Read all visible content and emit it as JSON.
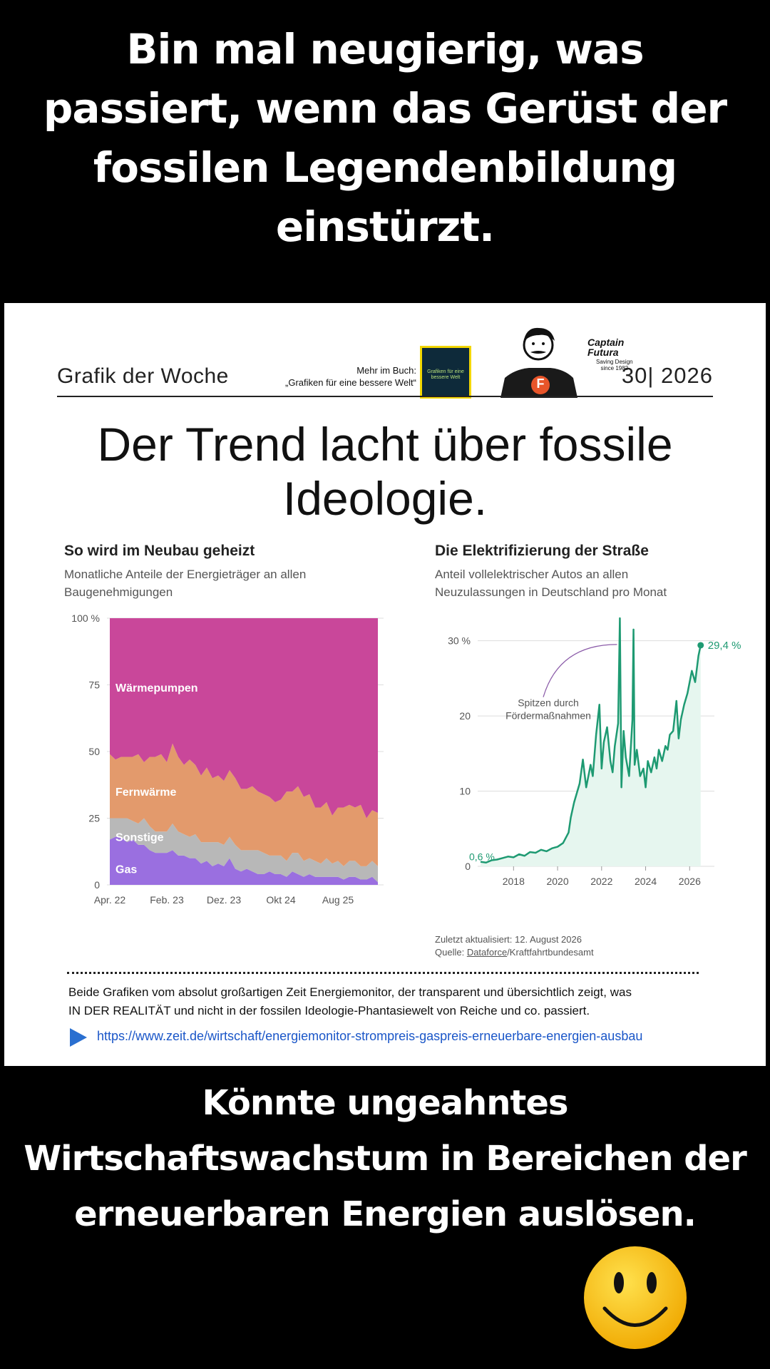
{
  "top_caption": [
    "Bin mal neugierig, was",
    "passiert, wenn das Gerüst der",
    "fossilen Legendenbildung",
    "einstürzt."
  ],
  "bottom_caption": [
    "Könnte ungeahntes",
    "Wirtschaftswachstum in Bereichen der",
    "erneuerbaren Energien auslösen."
  ],
  "header": {
    "left": "Grafik der Woche",
    "book_note_1": "Mehr im Buch:",
    "book_note_2": "„Grafiken für eine bessere Welt“",
    "book_cover_text": "Grafiken für eine bessere Welt",
    "logo_name_1": "Captain",
    "logo_name_2": "Futura",
    "logo_sub_1": "Saving Design",
    "logo_sub_2": "since 1982",
    "logo_badge": "F",
    "issue": "30| 2026"
  },
  "headline": [
    "Der Trend lacht über fossile",
    "Ideologie."
  ],
  "chart_left_text": {
    "title": "So wird im Neubau geheizt",
    "subtitle_1": "Monatliche Anteile der Energieträger an allen",
    "subtitle_2": "Baugenehmigungen",
    "y_ticks": [
      "100 %",
      "75",
      "50",
      "25",
      "0"
    ],
    "x_ticks": [
      "Apr. 22",
      "Feb. 23",
      "Dez. 23",
      "Okt 24",
      "Aug 25"
    ],
    "labels": [
      "Wärmepumpen",
      "Fernwärme",
      "Sonstige",
      "Gas"
    ]
  },
  "chart_right_text": {
    "title": "Die Elektrifizierung der Straße",
    "subtitle_1": "Anteil vollelektrischer Autos an allen",
    "subtitle_2": "Neuzulassungen in Deutschland pro Monat",
    "y_ticks": [
      "30 %",
      "20",
      "10",
      "0"
    ],
    "x_ticks": [
      "2018",
      "2020",
      "2022",
      "2024",
      "2026"
    ],
    "annotation_1": "Spitzen durch",
    "annotation_2": "Fördermaßnahmen",
    "start_label": "0,6 %",
    "end_label": "29,4 %",
    "updated": "Zuletzt aktualisiert: 12. August 2026",
    "source_prefix": "Quelle: ",
    "source_link": "Dataforce",
    "source_suffix": "/Kraftfahrtbundesamt"
  },
  "note": {
    "line_1": "Beide Grafiken vom absolut großartigen Zeit Energiemonitor, der transparent und übersichtlich zeigt, was",
    "line_2": "IN DER REALITÄT und nicht in der fossilen Ideologie-Phantasiewelt von Reiche und co. passiert.",
    "url": "https://www.zeit.de/wirtschaft/energiemonitor-strompreis-gaspreis-erneuerbare-energien-ausbau"
  },
  "colors": {
    "waermepumpen": "#c9479a",
    "fernwaerme": "#e39a6c",
    "sonstige": "#b8b8b8",
    "gas": "#9a6fe0",
    "ev_line": "#1e9a72",
    "ev_fill": "#e6f6ef",
    "link": "#1a56c8"
  },
  "chart_data": [
    {
      "type": "area",
      "title": "So wird im Neubau geheizt",
      "ylabel": "",
      "ylim": [
        0,
        100
      ],
      "x": [
        "Apr. 22",
        "Mai 22",
        "Jun. 22",
        "Jul. 22",
        "Aug. 22",
        "Sep. 22",
        "Okt. 22",
        "Nov. 22",
        "Dez. 22",
        "Jan. 23",
        "Feb. 23",
        "Mär. 23",
        "Apr. 23",
        "Mai 23",
        "Jun. 23",
        "Jul. 23",
        "Aug. 23",
        "Sep. 23",
        "Okt. 23",
        "Nov. 23",
        "Dez. 23",
        "Jan. 24",
        "Feb. 24",
        "Mär. 24",
        "Apr. 24",
        "Mai 24",
        "Jun. 24",
        "Jul. 24",
        "Aug. 24",
        "Sep. 24",
        "Okt. 24",
        "Nov. 24",
        "Dez. 24",
        "Jan. 25",
        "Feb. 25",
        "Mär. 25",
        "Apr. 25",
        "Mai 25",
        "Jun. 25",
        "Jul. 25",
        "Aug. 25",
        "Sep. 25",
        "Okt. 25",
        "Nov. 25",
        "Dez. 25",
        "Jan. 26",
        "Feb. 26",
        "Mär. 26"
      ],
      "series": [
        {
          "name": "Gas",
          "values": [
            17,
            18,
            18,
            16,
            17,
            15,
            15,
            13,
            12,
            12,
            12,
            13,
            11,
            11,
            10,
            10,
            8,
            9,
            7,
            8,
            7,
            10,
            6,
            5,
            6,
            5,
            4,
            4,
            5,
            4,
            4,
            3,
            5,
            4,
            3,
            4,
            3,
            3,
            3,
            3,
            3,
            2,
            3,
            3,
            2,
            2,
            3,
            1
          ]
        },
        {
          "name": "Sonstige",
          "values": [
            8,
            7,
            7,
            9,
            7,
            8,
            10,
            9,
            8,
            8,
            8,
            10,
            9,
            8,
            8,
            9,
            8,
            7,
            9,
            8,
            8,
            8,
            9,
            8,
            7,
            8,
            9,
            8,
            6,
            7,
            7,
            6,
            7,
            8,
            6,
            6,
            6,
            5,
            7,
            5,
            6,
            5,
            6,
            6,
            5,
            5,
            6,
            6
          ]
        },
        {
          "name": "Fernwärme",
          "values": [
            24,
            22,
            23,
            23,
            24,
            26,
            21,
            26,
            28,
            29,
            26,
            30,
            28,
            26,
            29,
            26,
            25,
            28,
            24,
            25,
            24,
            25,
            25,
            23,
            23,
            24,
            22,
            22,
            22,
            20,
            21,
            26,
            23,
            25,
            24,
            24,
            20,
            21,
            21,
            18,
            20,
            22,
            21,
            20,
            23,
            18,
            19,
            20
          ]
        },
        {
          "name": "Wärmepumpen",
          "values": [
            51,
            53,
            52,
            52,
            52,
            51,
            54,
            52,
            52,
            51,
            54,
            47,
            52,
            55,
            53,
            55,
            59,
            56,
            60,
            59,
            61,
            57,
            60,
            64,
            64,
            63,
            65,
            66,
            67,
            69,
            68,
            65,
            65,
            63,
            67,
            66,
            71,
            71,
            69,
            74,
            71,
            71,
            70,
            71,
            70,
            75,
            72,
            73
          ]
        }
      ]
    },
    {
      "type": "line",
      "title": "Die Elektrifizierung der Straße",
      "ylabel": "",
      "ylim": [
        0,
        33
      ],
      "xlim": [
        2016.5,
        2026.8
      ],
      "x": [
        2016.5,
        2016.75,
        2017.0,
        2017.25,
        2017.5,
        2017.75,
        2018.0,
        2018.25,
        2018.5,
        2018.75,
        2019.0,
        2019.25,
        2019.5,
        2019.75,
        2020.0,
        2020.25,
        2020.5,
        2020.6,
        2020.75,
        2021.0,
        2021.15,
        2021.3,
        2021.5,
        2021.6,
        2021.75,
        2021.9,
        2022.0,
        2022.1,
        2022.25,
        2022.4,
        2022.5,
        2022.6,
        2022.75,
        2022.83,
        2022.9,
        2023.0,
        2023.1,
        2023.25,
        2023.4,
        2023.45,
        2023.5,
        2023.6,
        2023.75,
        2023.9,
        2024.0,
        2024.1,
        2024.25,
        2024.4,
        2024.5,
        2024.6,
        2024.75,
        2024.9,
        2025.0,
        2025.1,
        2025.25,
        2025.4,
        2025.5,
        2025.6,
        2025.75,
        2025.9,
        2026.0,
        2026.1,
        2026.25,
        2026.4,
        2026.5
      ],
      "values": [
        0.6,
        0.5,
        0.8,
        0.9,
        1.1,
        1.3,
        1.2,
        1.6,
        1.4,
        1.9,
        1.8,
        2.2,
        2.0,
        2.4,
        2.6,
        3.1,
        4.5,
        6.5,
        8.5,
        11.0,
        14.2,
        10.5,
        13.5,
        12.0,
        17.5,
        21.5,
        13.0,
        16.5,
        18.5,
        14.0,
        12.5,
        16.0,
        19.0,
        33.0,
        10.5,
        18.0,
        14.5,
        12.0,
        19.5,
        31.5,
        13.5,
        15.5,
        12.0,
        13.0,
        10.5,
        14.0,
        12.5,
        14.5,
        13.0,
        15.5,
        14.0,
        16.0,
        15.5,
        17.5,
        18.0,
        22.0,
        17.0,
        19.5,
        21.5,
        23.0,
        24.5,
        26.0,
        24.5,
        28.0,
        29.4
      ],
      "annotations": [
        "Spitzen durch Fördermaßnahmen",
        "0,6 %",
        "29,4 %"
      ]
    }
  ]
}
